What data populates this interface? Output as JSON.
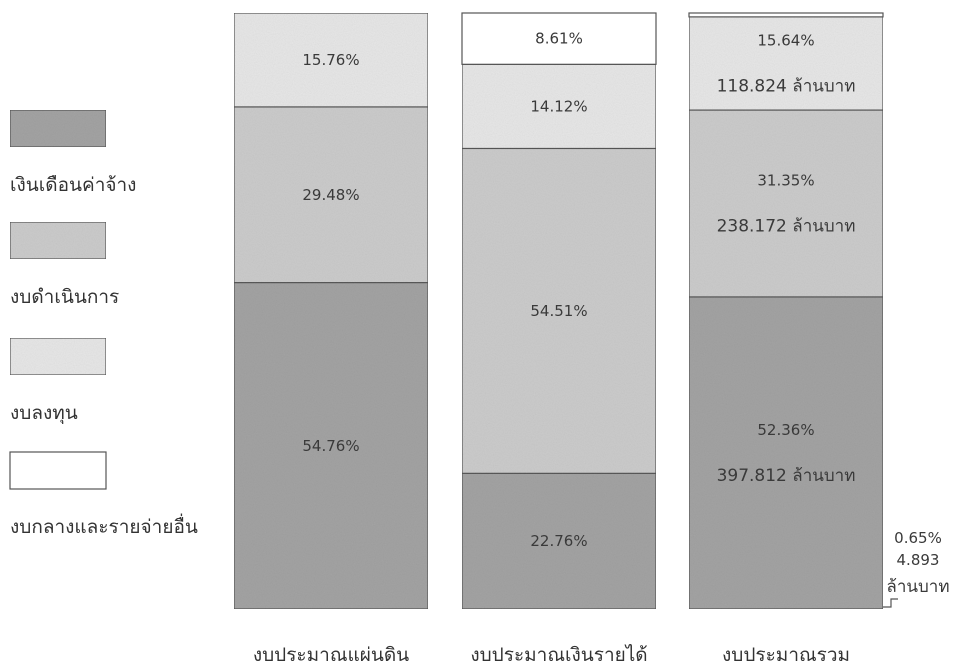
{
  "colors": {
    "salary": "#a3a3a3",
    "operating": "#cbcbcb",
    "capital": "#e6e6e6",
    "central": "#ffffff"
  },
  "legend": [
    {
      "key": "salary",
      "label": "เงินเดือนค่าจ้าง"
    },
    {
      "key": "operating",
      "label": "งบดำเนินการ"
    },
    {
      "key": "capital",
      "label": "งบลงทุน"
    },
    {
      "key": "central",
      "label": "งบกลางและรายจ่ายอื่น"
    }
  ],
  "chart_data": {
    "type": "bar",
    "stacked": true,
    "normalized": "percent",
    "categories": [
      "งบประมาณแผ่นดิน",
      "งบประมาณเงินรายได้",
      "งบประมาณรวม"
    ],
    "series": [
      {
        "name": "เงินเดือนค่าจ้าง",
        "key": "salary",
        "values": [
          54.76,
          22.76,
          52.36
        ],
        "labels": [
          [
            "54.76%"
          ],
          [
            "22.76%"
          ],
          [
            "52.36%",
            "397.812 ล้านบาท"
          ]
        ]
      },
      {
        "name": "งบดำเนินการ",
        "key": "operating",
        "values": [
          29.48,
          54.51,
          31.35
        ],
        "labels": [
          [
            "29.48%"
          ],
          [
            "54.51%"
          ],
          [
            "31.35%",
            "238.172 ล้านบาท"
          ]
        ]
      },
      {
        "name": "งบลงทุน",
        "key": "capital",
        "values": [
          15.76,
          14.12,
          15.64
        ],
        "labels": [
          [
            "15.76%"
          ],
          [
            "14.12%"
          ],
          [
            "15.64%",
            "118.824 ล้านบาท"
          ]
        ]
      },
      {
        "name": "งบกลางและรายจ่ายอื่น",
        "key": "central",
        "values": [
          0,
          8.61,
          0.65
        ],
        "labels": [
          [],
          [
            "8.61%"
          ],
          []
        ]
      }
    ],
    "callout": {
      "category_index": 2,
      "series_key": "central",
      "lines": [
        "0.65%",
        "4.893",
        "ล้านบาท"
      ]
    }
  }
}
